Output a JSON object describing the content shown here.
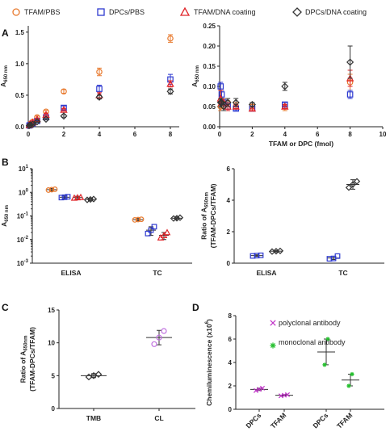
{
  "panel_labels": {
    "a": "A",
    "b": "B",
    "c": "C",
    "d": "D"
  },
  "legend": {
    "tfam_pbs": "TFAM/PBS",
    "dpcs_pbs": "DPCs/PBS",
    "tfam_dna": "TFAM/DNA coating",
    "dpcs_dna": "DPCs/DNA coating"
  },
  "colors": {
    "tfam_pbs": "#e8792d",
    "dpcs_pbs": "#2e3ad0",
    "tfam_dna": "#e0262a",
    "dpcs_dna": "#333333",
    "polyclonal": "#c034c8",
    "monoclonal": "#27c030",
    "c_tc": "#c070e0"
  },
  "chart_data": [
    {
      "id": "A-left",
      "type": "scatter",
      "xlabel": "",
      "ylabel": "A650 nm",
      "ylabel_main": "A",
      "ylabel_sub": "650 nm",
      "xlim": [
        0,
        8.5
      ],
      "ylim": [
        0,
        1.6
      ],
      "xticks": [
        0,
        2,
        4,
        6,
        8
      ],
      "yticks": [
        0.0,
        0.5,
        1.0,
        1.5
      ],
      "series": [
        {
          "key": "tfam_pbs",
          "marker": "circle",
          "points": [
            {
              "x": 0.0625,
              "y": 0.03,
              "e": 0.01
            },
            {
              "x": 0.125,
              "y": 0.05,
              "e": 0.01
            },
            {
              "x": 0.25,
              "y": 0.08,
              "e": 0.01
            },
            {
              "x": 0.5,
              "y": 0.15,
              "e": 0.02
            },
            {
              "x": 1,
              "y": 0.24,
              "e": 0.02
            },
            {
              "x": 2,
              "y": 0.56,
              "e": 0.03
            },
            {
              "x": 4,
              "y": 0.87,
              "e": 0.06
            },
            {
              "x": 8,
              "y": 1.4,
              "e": 0.06
            }
          ]
        },
        {
          "key": "dpcs_pbs",
          "marker": "square",
          "points": [
            {
              "x": 0.0625,
              "y": 0.02,
              "e": 0.01
            },
            {
              "x": 0.125,
              "y": 0.03,
              "e": 0.01
            },
            {
              "x": 0.25,
              "y": 0.05,
              "e": 0.01
            },
            {
              "x": 0.5,
              "y": 0.09,
              "e": 0.01
            },
            {
              "x": 1,
              "y": 0.15,
              "e": 0.02
            },
            {
              "x": 2,
              "y": 0.3,
              "e": 0.03
            },
            {
              "x": 4,
              "y": 0.6,
              "e": 0.06
            },
            {
              "x": 8,
              "y": 0.75,
              "e": 0.08
            }
          ]
        },
        {
          "key": "tfam_dna",
          "marker": "triangle",
          "points": [
            {
              "x": 0.0625,
              "y": 0.03,
              "e": 0.01
            },
            {
              "x": 0.125,
              "y": 0.05,
              "e": 0.01
            },
            {
              "x": 0.25,
              "y": 0.07,
              "e": 0.01
            },
            {
              "x": 0.5,
              "y": 0.12,
              "e": 0.01
            },
            {
              "x": 1,
              "y": 0.19,
              "e": 0.02
            },
            {
              "x": 2,
              "y": 0.27,
              "e": 0.02
            },
            {
              "x": 4,
              "y": 0.5,
              "e": 0.04
            },
            {
              "x": 8,
              "y": 0.68,
              "e": 0.05
            }
          ]
        },
        {
          "key": "dpcs_dna",
          "marker": "diamond",
          "points": [
            {
              "x": 0.0625,
              "y": 0.02,
              "e": 0.01
            },
            {
              "x": 0.125,
              "y": 0.03,
              "e": 0.01
            },
            {
              "x": 0.25,
              "y": 0.04,
              "e": 0.01
            },
            {
              "x": 0.5,
              "y": 0.08,
              "e": 0.01
            },
            {
              "x": 1,
              "y": 0.12,
              "e": 0.01
            },
            {
              "x": 2,
              "y": 0.17,
              "e": 0.02
            },
            {
              "x": 4,
              "y": 0.47,
              "e": 0.03
            },
            {
              "x": 8,
              "y": 0.56,
              "e": 0.04
            }
          ]
        }
      ]
    },
    {
      "id": "A-right",
      "type": "scatter",
      "xlabel": "TFAM or DPC (fmol)",
      "ylabel": "A650 nm",
      "ylabel_main": "A",
      "ylabel_sub": "650 nm",
      "xlim": [
        0,
        10
      ],
      "ylim": [
        0,
        0.25
      ],
      "xticks": [
        0,
        2,
        4,
        6,
        8,
        10
      ],
      "yticks": [
        0.0,
        0.05,
        0.1,
        0.15,
        0.2,
        0.25
      ],
      "series": [
        {
          "key": "tfam_pbs",
          "marker": "circle",
          "points": [
            {
              "x": 0.0625,
              "y": 0.05,
              "e": 0.01
            },
            {
              "x": 0.125,
              "y": 0.06,
              "e": 0.01
            },
            {
              "x": 0.25,
              "y": 0.05,
              "e": 0.01
            },
            {
              "x": 0.5,
              "y": 0.06,
              "e": 0.01
            },
            {
              "x": 1,
              "y": 0.05,
              "e": 0.01
            },
            {
              "x": 2,
              "y": 0.05,
              "e": 0.005
            },
            {
              "x": 4,
              "y": 0.05,
              "e": 0.01
            },
            {
              "x": 8,
              "y": 0.11,
              "e": 0.02
            }
          ]
        },
        {
          "key": "dpcs_pbs",
          "marker": "square",
          "points": [
            {
              "x": 0.0625,
              "y": 0.1,
              "e": 0.01
            },
            {
              "x": 0.125,
              "y": 0.08,
              "e": 0.01
            },
            {
              "x": 0.25,
              "y": 0.06,
              "e": 0.01
            },
            {
              "x": 0.5,
              "y": 0.05,
              "e": 0.01
            },
            {
              "x": 1,
              "y": 0.045,
              "e": 0.005
            },
            {
              "x": 2,
              "y": 0.045,
              "e": 0.005
            },
            {
              "x": 4,
              "y": 0.055,
              "e": 0.005
            },
            {
              "x": 8,
              "y": 0.08,
              "e": 0.01
            }
          ]
        },
        {
          "key": "tfam_dna",
          "marker": "triangle",
          "points": [
            {
              "x": 0.0625,
              "y": 0.07,
              "e": 0.02
            },
            {
              "x": 0.125,
              "y": 0.06,
              "e": 0.01
            },
            {
              "x": 0.25,
              "y": 0.06,
              "e": 0.01
            },
            {
              "x": 0.5,
              "y": 0.05,
              "e": 0.01
            },
            {
              "x": 1,
              "y": 0.05,
              "e": 0.005
            },
            {
              "x": 2,
              "y": 0.045,
              "e": 0.005
            },
            {
              "x": 4,
              "y": 0.05,
              "e": 0.005
            },
            {
              "x": 8,
              "y": 0.12,
              "e": 0.02
            }
          ]
        },
        {
          "key": "dpcs_dna",
          "marker": "diamond",
          "points": [
            {
              "x": 0.0625,
              "y": 0.06,
              "e": 0.01
            },
            {
              "x": 0.125,
              "y": 0.06,
              "e": 0.01
            },
            {
              "x": 0.25,
              "y": 0.05,
              "e": 0.01
            },
            {
              "x": 0.5,
              "y": 0.06,
              "e": 0.01
            },
            {
              "x": 1,
              "y": 0.06,
              "e": 0.01
            },
            {
              "x": 2,
              "y": 0.055,
              "e": 0.005
            },
            {
              "x": 4,
              "y": 0.1,
              "e": 0.01
            },
            {
              "x": 8,
              "y": 0.16,
              "e": 0.04
            }
          ]
        }
      ]
    },
    {
      "id": "B-left",
      "type": "scatter",
      "ylabel": "A650 nm",
      "ylabel_main": "A",
      "ylabel_sub": "650 nm",
      "yscale": "log",
      "ylim": [
        0.001,
        10
      ],
      "ytick_bases": [
        "10",
        "10",
        "10",
        "10",
        "10"
      ],
      "ytick_exps": [
        "-3",
        "-2",
        "-1",
        "0",
        "1"
      ],
      "yticks": [
        0.001,
        0.01,
        0.1,
        1,
        10
      ],
      "categories": [
        "ELISA",
        "TC"
      ],
      "groups": [
        {
          "key": "tfam_pbs",
          "marker": "circle",
          "category": "ELISA",
          "mean": 1.3,
          "err": 0.15,
          "pts": [
            1.25,
            1.3,
            1.35
          ]
        },
        {
          "key": "dpcs_pbs",
          "marker": "square",
          "category": "ELISA",
          "mean": 0.62,
          "err": 0.08,
          "pts": [
            0.6,
            0.62,
            0.65
          ]
        },
        {
          "key": "tfam_dna",
          "marker": "triangle",
          "category": "ELISA",
          "mean": 0.6,
          "err": 0.08,
          "pts": [
            0.58,
            0.6,
            0.62
          ]
        },
        {
          "key": "dpcs_dna",
          "marker": "diamond",
          "category": "ELISA",
          "mean": 0.5,
          "err": 0.06,
          "pts": [
            0.48,
            0.5,
            0.52
          ]
        },
        {
          "key": "tfam_pbs",
          "marker": "circle",
          "category": "TC",
          "mean": 0.07,
          "err": 0.008,
          "pts": [
            0.068,
            0.07,
            0.072
          ]
        },
        {
          "key": "dpcs_pbs",
          "marker": "square",
          "category": "TC",
          "mean": 0.025,
          "err": 0.01,
          "pts": [
            0.018,
            0.025,
            0.035
          ]
        },
        {
          "key": "tfam_dna",
          "marker": "triangle",
          "category": "TC",
          "mean": 0.015,
          "err": 0.005,
          "pts": [
            0.012,
            0.015,
            0.02
          ]
        },
        {
          "key": "dpcs_dna",
          "marker": "diamond",
          "category": "TC",
          "mean": 0.08,
          "err": 0.01,
          "pts": [
            0.078,
            0.08,
            0.085
          ]
        }
      ]
    },
    {
      "id": "B-right",
      "type": "scatter",
      "ylabel": "Ratio of A650nm (TFAM-DPCs/TFAM)",
      "ylabel_line1": "Ratio of A",
      "ylabel_sub": "650nm",
      "ylabel_line2": "(TFAM-DPCs/TFAM)",
      "ylim": [
        0,
        6
      ],
      "yticks": [
        0,
        2,
        4,
        6
      ],
      "categories": [
        "ELISA",
        "TC"
      ],
      "groups": [
        {
          "key": "dpcs_pbs",
          "marker": "square",
          "category": "ELISA",
          "mean": 0.48,
          "err": 0.05,
          "pts": [
            0.46,
            0.48,
            0.5
          ]
        },
        {
          "key": "dpcs_dna",
          "marker": "diamond",
          "category": "ELISA",
          "mean": 0.76,
          "err": 0.05,
          "pts": [
            0.74,
            0.76,
            0.78
          ]
        },
        {
          "key": "dpcs_pbs",
          "marker": "square",
          "category": "TC",
          "mean": 0.33,
          "err": 0.1,
          "pts": [
            0.28,
            0.3,
            0.45
          ]
        },
        {
          "key": "dpcs_dna",
          "marker": "diamond",
          "category": "TC",
          "mean": 5.0,
          "err": 0.3,
          "pts": [
            4.8,
            5.0,
            5.2
          ]
        }
      ]
    },
    {
      "id": "C",
      "type": "scatter",
      "ylabel": "Ratio of A650nm (TFAM-DPCs/TFAM)",
      "ylabel_line1": "Ratio of A",
      "ylabel_sub": "650nm",
      "ylabel_line2": "(TFAM-DPCs/TFAM)",
      "ylim": [
        0,
        15
      ],
      "yticks": [
        0,
        5,
        10,
        15
      ],
      "categories": [
        "TMB",
        "CL"
      ],
      "groups": [
        {
          "key": "dpcs_dna",
          "marker": "diamond",
          "category": "TMB",
          "mean": 5.0,
          "err": 0.3,
          "pts": [
            4.8,
            5.0,
            5.2
          ]
        },
        {
          "key": "c_tc",
          "marker": "circle",
          "category": "CL",
          "mean": 10.8,
          "err": 1.1,
          "pts": [
            9.8,
            10.8,
            11.8
          ]
        }
      ]
    },
    {
      "id": "D",
      "type": "scatter",
      "ylabel": "Chemiluminescence (x10^6)",
      "ylabel_main": "Chemiluminescence (x10",
      "ylabel_exp": "6",
      "ylabel_end": ")",
      "ylim": [
        0,
        8
      ],
      "yticks": [
        0,
        2,
        4,
        6,
        8
      ],
      "categories": [
        "DPCs",
        "TFAM",
        "DPCs",
        "TFAM"
      ],
      "legend": {
        "polyclonal": "polyclonal antibody",
        "monoclonal": "monoclonal antibody"
      },
      "groups": [
        {
          "key": "polyclonal",
          "marker": "x",
          "category_index": 0,
          "mean": 1.7,
          "err": 0.1,
          "pts": [
            1.6,
            1.7,
            1.8
          ]
        },
        {
          "key": "polyclonal",
          "marker": "x",
          "category_index": 1,
          "mean": 1.2,
          "err": 0.05,
          "pts": [
            1.15,
            1.2,
            1.25
          ]
        },
        {
          "key": "monoclonal",
          "marker": "star",
          "category_index": 2,
          "mean": 4.9,
          "err": 1.1,
          "pts": [
            3.8,
            6.0
          ]
        },
        {
          "key": "monoclonal",
          "marker": "star",
          "category_index": 3,
          "mean": 2.5,
          "err": 0.5,
          "pts": [
            2.0,
            3.0
          ]
        }
      ]
    }
  ]
}
